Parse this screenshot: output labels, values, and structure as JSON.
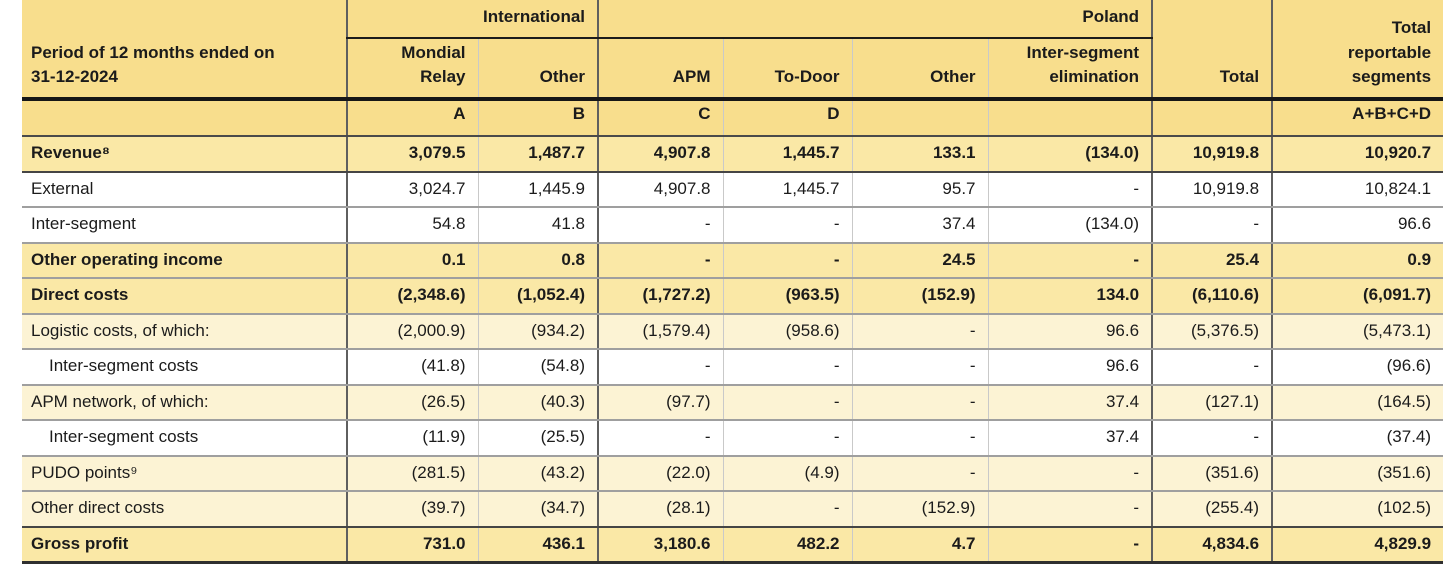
{
  "table": {
    "period_header": {
      "line1": "Period of 12 months ended on",
      "line2": "31-12-2024"
    },
    "groups": {
      "international": "International",
      "poland": "Poland"
    },
    "column_headers": {
      "mondial_relay": "Mondial Relay",
      "other_international": "Other",
      "apm": "APM",
      "to_door": "To-Door",
      "other_poland": "Other",
      "inter_segment_elimination": "Inter-segment elimination",
      "total": "Total",
      "total_reportable_segments": "Total reportable segments"
    },
    "sub_headers": [
      "A",
      "B",
      "C",
      "D",
      "",
      "",
      "",
      "A+B+C+D"
    ],
    "colors": {
      "header_yellow": "#F8DE8D",
      "highlight_row_yellow": "#FAE8A6",
      "cream_row": "#FCF3D4",
      "white_row": "#FFFFFF",
      "text": "#1B1B1B"
    },
    "rows": [
      {
        "label": "Revenue⁸",
        "style": "highlight",
        "indent": false,
        "dark_border": true,
        "values": [
          "3,079.5",
          "1,487.7",
          "4,907.8",
          "1,445.7",
          "133.1",
          "(134.0)",
          "10,919.8",
          "10,920.7"
        ]
      },
      {
        "label": "External",
        "style": "white",
        "indent": false,
        "dark_border": false,
        "values": [
          "3,024.7",
          "1,445.9",
          "4,907.8",
          "1,445.7",
          "95.7",
          "-",
          "10,919.8",
          "10,824.1"
        ]
      },
      {
        "label": "Inter-segment",
        "style": "white",
        "indent": false,
        "dark_border": false,
        "values": [
          "54.8",
          "41.8",
          "-",
          "-",
          "37.4",
          "(134.0)",
          "-",
          "96.6"
        ]
      },
      {
        "label": "Other operating income",
        "style": "highlight",
        "indent": false,
        "dark_border": false,
        "values": [
          "0.1",
          "0.8",
          "-",
          "-",
          "24.5",
          "-",
          "25.4",
          "0.9"
        ]
      },
      {
        "label": "Direct costs",
        "style": "highlight",
        "indent": false,
        "dark_border": false,
        "values": [
          "(2,348.6)",
          "(1,052.4)",
          "(1,727.2)",
          "(963.5)",
          "(152.9)",
          "134.0",
          "(6,110.6)",
          "(6,091.7)"
        ]
      },
      {
        "label": "Logistic costs, of which:",
        "style": "cream",
        "indent": false,
        "dark_border": false,
        "values": [
          "(2,000.9)",
          "(934.2)",
          "(1,579.4)",
          "(958.6)",
          "-",
          "96.6",
          "(5,376.5)",
          "(5,473.1)"
        ]
      },
      {
        "label": "Inter-segment costs",
        "style": "white",
        "indent": true,
        "dark_border": false,
        "values": [
          "(41.8)",
          "(54.8)",
          "-",
          "-",
          "-",
          "96.6",
          "-",
          "(96.6)"
        ]
      },
      {
        "label": "APM network, of which:",
        "style": "cream",
        "indent": false,
        "dark_border": false,
        "values": [
          "(26.5)",
          "(40.3)",
          "(97.7)",
          "-",
          "-",
          "37.4",
          "(127.1)",
          "(164.5)"
        ]
      },
      {
        "label": "Inter-segment costs",
        "style": "white",
        "indent": true,
        "dark_border": false,
        "values": [
          "(11.9)",
          "(25.5)",
          "-",
          "-",
          "-",
          "37.4",
          "-",
          "(37.4)"
        ]
      },
      {
        "label": "PUDO points⁹",
        "style": "cream",
        "indent": false,
        "dark_border": false,
        "values": [
          "(281.5)",
          "(43.2)",
          "(22.0)",
          "(4.9)",
          "-",
          "-",
          "(351.6)",
          "(351.6)"
        ]
      },
      {
        "label": "Other direct costs",
        "style": "cream",
        "indent": false,
        "dark_border": true,
        "values": [
          "(39.7)",
          "(34.7)",
          "(28.1)",
          "-",
          "(152.9)",
          "-",
          "(255.4)",
          "(102.5)"
        ]
      },
      {
        "label": "Gross profit",
        "style": "highlight",
        "indent": false,
        "dark_border": false,
        "table_end": true,
        "values": [
          "731.0",
          "436.1",
          "3,180.6",
          "482.2",
          "4.7",
          "-",
          "4,834.6",
          "4,829.9"
        ]
      }
    ]
  }
}
